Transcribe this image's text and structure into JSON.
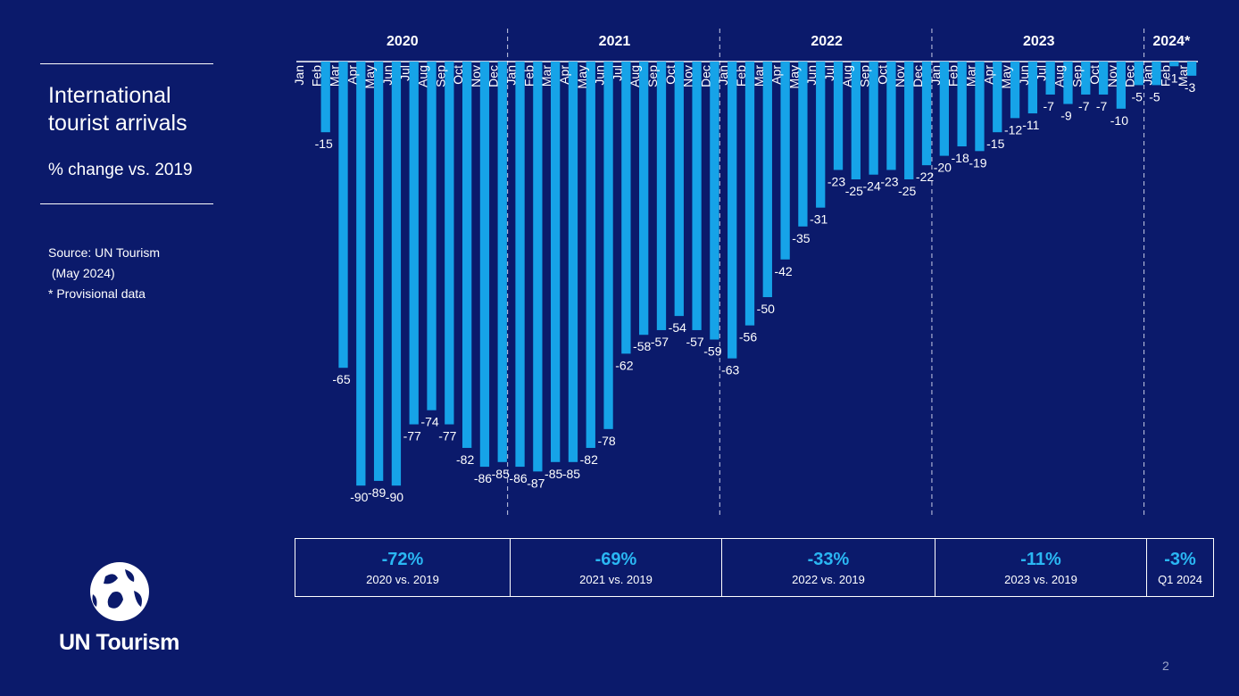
{
  "left_panel": {
    "title": "International tourist arrivals",
    "subtitle": "% change vs. 2019",
    "source": "Source: UN Tourism\n (May 2024)\n* Provisional data"
  },
  "logo": {
    "text": "UN Tourism",
    "icon": "globe-logo-icon"
  },
  "page_number": "2",
  "colors": {
    "background": "#0b1a6b",
    "bar": "#16a3e8",
    "accent": "#2ab7f3",
    "text": "#ffffff"
  },
  "chart_data": {
    "type": "bar",
    "title": "International tourist arrivals, % change vs. 2019",
    "ylabel": "% change vs. 2019",
    "ylim": [
      -95,
      0
    ],
    "groups": [
      {
        "label": "2020",
        "months": 12
      },
      {
        "label": "2021",
        "months": 12
      },
      {
        "label": "2022",
        "months": 12
      },
      {
        "label": "2023",
        "months": 12
      },
      {
        "label": "2024*",
        "months": 3
      }
    ],
    "categories": [
      "Jan",
      "Feb",
      "Mar",
      "Apr",
      "May",
      "Jun",
      "Jul",
      "Aug",
      "Sep",
      "Oct",
      "Nov",
      "Dec",
      "Jan",
      "Feb",
      "Mar",
      "Apr",
      "May",
      "Jun",
      "Jul",
      "Aug",
      "Sep",
      "Oct",
      "Nov",
      "Dec",
      "Jan",
      "Feb",
      "Mar",
      "Apr",
      "May",
      "Jun",
      "Jul",
      "Aug",
      "Sep",
      "Oct",
      "Nov",
      "Dec",
      "Jan",
      "Feb",
      "Mar",
      "Apr",
      "May",
      "Jun",
      "Jul",
      "Aug",
      "Sep",
      "Oct",
      "Nov",
      "Dec",
      "Jan",
      "Feb",
      "Mar"
    ],
    "values": [
      0,
      -15,
      -65,
      -90,
      -89,
      -90,
      -77,
      -74,
      -77,
      -82,
      -86,
      -85,
      -86,
      -87,
      -85,
      -85,
      -82,
      -78,
      -62,
      -58,
      -57,
      -54,
      -57,
      -59,
      -63,
      -56,
      -50,
      -42,
      -35,
      -31,
      -23,
      -25,
      -24,
      -23,
      -25,
      -22,
      -20,
      -18,
      -19,
      -15,
      -12,
      -11,
      -7,
      -9,
      -7,
      -7,
      -10,
      -5,
      -5,
      -1,
      -3
    ],
    "labels": [
      "",
      "-15",
      "-65",
      "-90",
      "-89",
      "-90",
      "-77",
      "-74",
      "-77",
      "-82",
      "-86",
      "-85",
      "-86",
      "-87",
      "-85",
      "-85",
      "-82",
      "-78",
      "-62",
      "-58",
      "-57",
      "-54",
      "-57",
      "-59",
      "-63",
      "-56",
      "-50",
      "-42",
      "-35",
      "-31",
      "-23",
      "-25",
      "-24",
      "-23",
      "-25",
      "-22",
      "-20",
      "-18",
      "-19",
      "-15",
      "-12",
      "-11",
      "-7",
      "-9",
      "-7",
      "-7",
      "-10",
      "-5",
      "-5",
      "-1",
      "-3"
    ]
  },
  "summary": [
    {
      "pct": "-72%",
      "label": "2020 vs. 2019"
    },
    {
      "pct": "-69%",
      "label": "2021 vs. 2019"
    },
    {
      "pct": "-33%",
      "label": "2022 vs. 2019"
    },
    {
      "pct": "-11%",
      "label": "2023 vs. 2019"
    },
    {
      "pct": "-3%",
      "label": "Q1 2024"
    }
  ]
}
